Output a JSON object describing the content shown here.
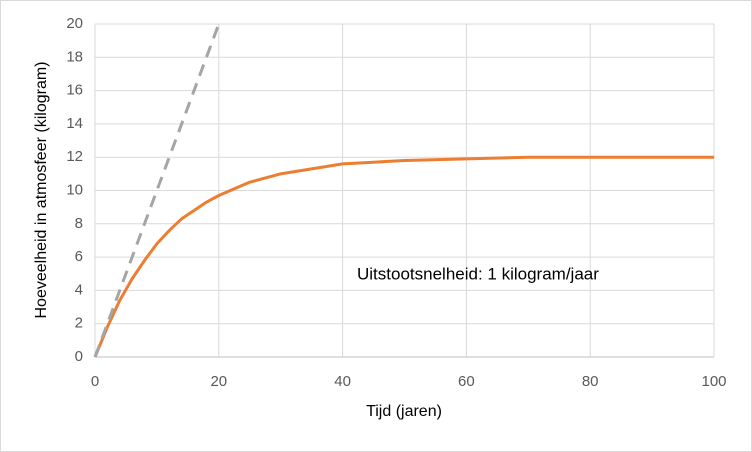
{
  "chart_data": {
    "type": "line",
    "x_label": "Tijd (jaren)",
    "y_label": "Hoeveelheid in atmosfeer (kilogram)",
    "annotation": "Uitstootsnelheid: 1 kilogram/jaar",
    "xlim": [
      0,
      100
    ],
    "xticks": [
      0,
      20,
      40,
      60,
      80,
      100
    ],
    "ylim": [
      0,
      20
    ],
    "yticks": [
      0,
      2,
      4,
      6,
      8,
      10,
      12,
      14,
      16,
      18,
      20
    ],
    "grid": true,
    "series": [
      {
        "color": "#ed7d31",
        "style": "solid",
        "x": [
          0,
          2,
          4,
          6,
          8,
          10,
          12,
          14,
          16,
          18,
          20,
          25,
          30,
          35,
          40,
          45,
          50,
          60,
          70,
          80,
          90,
          100
        ],
        "values": [
          0,
          1.8,
          3.4,
          4.7,
          5.8,
          6.8,
          7.6,
          8.3,
          8.8,
          9.3,
          9.7,
          10.5,
          11.0,
          11.3,
          11.6,
          11.7,
          11.8,
          11.9,
          12.0,
          12.0,
          12.0,
          12.0
        ]
      },
      {
        "color": "#a5a5a5",
        "style": "dashed",
        "x": [
          0,
          20
        ],
        "values": [
          0,
          20
        ]
      }
    ]
  }
}
